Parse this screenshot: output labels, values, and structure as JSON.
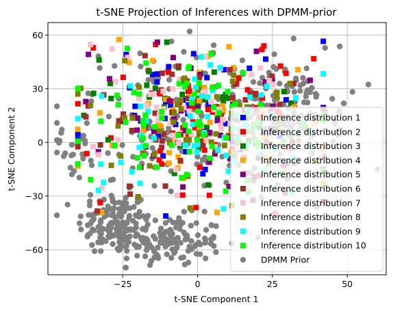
{
  "chart_data": {
    "type": "scatter",
    "title": "t-SNE Projection of Inferences with DPMM-prior",
    "xlabel": "t-SNE Component 1",
    "ylabel": "t-SNE Component 2",
    "xlim": [
      -50,
      63
    ],
    "ylim": [
      -74,
      67
    ],
    "xticks": [
      -25,
      0,
      25,
      50
    ],
    "yticks": [
      -60,
      -30,
      0,
      30,
      60
    ],
    "xtick_labels": [
      "−25",
      "0",
      "25",
      "50"
    ],
    "ytick_labels": [
      "−60",
      "−30",
      "0",
      "30",
      "60"
    ],
    "grid": true,
    "legend_position": "lower right",
    "series": [
      {
        "name": "Inference distribution 1",
        "marker": "square",
        "color": "#0000ff",
        "center": [
          -2,
          22
        ],
        "spread": [
          17,
          18
        ],
        "count": 45
      },
      {
        "name": "Inference distribution 2",
        "marker": "square",
        "color": "#ff0000",
        "center": [
          0,
          12
        ],
        "spread": [
          19,
          22
        ],
        "count": 70
      },
      {
        "name": "Inference distribution 3",
        "marker": "square",
        "color": "#008000",
        "center": [
          0,
          18
        ],
        "spread": [
          18,
          20
        ],
        "count": 45
      },
      {
        "name": "Inference distribution 4",
        "marker": "square",
        "color": "#ffa500",
        "center": [
          0,
          12
        ],
        "spread": [
          20,
          22
        ],
        "count": 50
      },
      {
        "name": "Inference distribution 5",
        "marker": "square",
        "color": "#800080",
        "center": [
          0,
          15
        ],
        "spread": [
          20,
          22
        ],
        "count": 50
      },
      {
        "name": "Inference distribution 6",
        "marker": "square",
        "color": "#a52a2a",
        "center": [
          0,
          12
        ],
        "spread": [
          20,
          24
        ],
        "count": 55
      },
      {
        "name": "Inference distribution 7",
        "marker": "square",
        "color": "#ffc0cb",
        "center": [
          0,
          14
        ],
        "spread": [
          20,
          22
        ],
        "count": 55
      },
      {
        "name": "Inference distribution 8",
        "marker": "square",
        "color": "#808000",
        "center": [
          0,
          12
        ],
        "spread": [
          20,
          22
        ],
        "count": 55
      },
      {
        "name": "Inference distribution 9",
        "marker": "square",
        "color": "#00ffff",
        "center": [
          0,
          10
        ],
        "spread": [
          20,
          20
        ],
        "count": 60
      },
      {
        "name": "Inference distribution 10",
        "marker": "square",
        "color": "#00ff00",
        "center": [
          0,
          12
        ],
        "spread": [
          21,
          22
        ],
        "count": 75
      },
      {
        "name": "DPMM Prior",
        "marker": "circle",
        "color": "#808080",
        "clusters": [
          {
            "center": [
              -28,
              -45
            ],
            "spread": [
              6,
              9
            ],
            "count": 130
          },
          {
            "center": [
              -10,
              -55
            ],
            "spread": [
              9,
              7
            ],
            "count": 140
          },
          {
            "center": [
              0,
              10
            ],
            "spread": [
              22,
              22
            ],
            "count": 200
          },
          {
            "center": [
              30,
              15
            ],
            "spread": [
              9,
              13
            ],
            "count": 110
          },
          {
            "center": [
              -40,
              -8
            ],
            "spread": [
              3,
              6
            ],
            "count": 15
          }
        ]
      }
    ]
  }
}
